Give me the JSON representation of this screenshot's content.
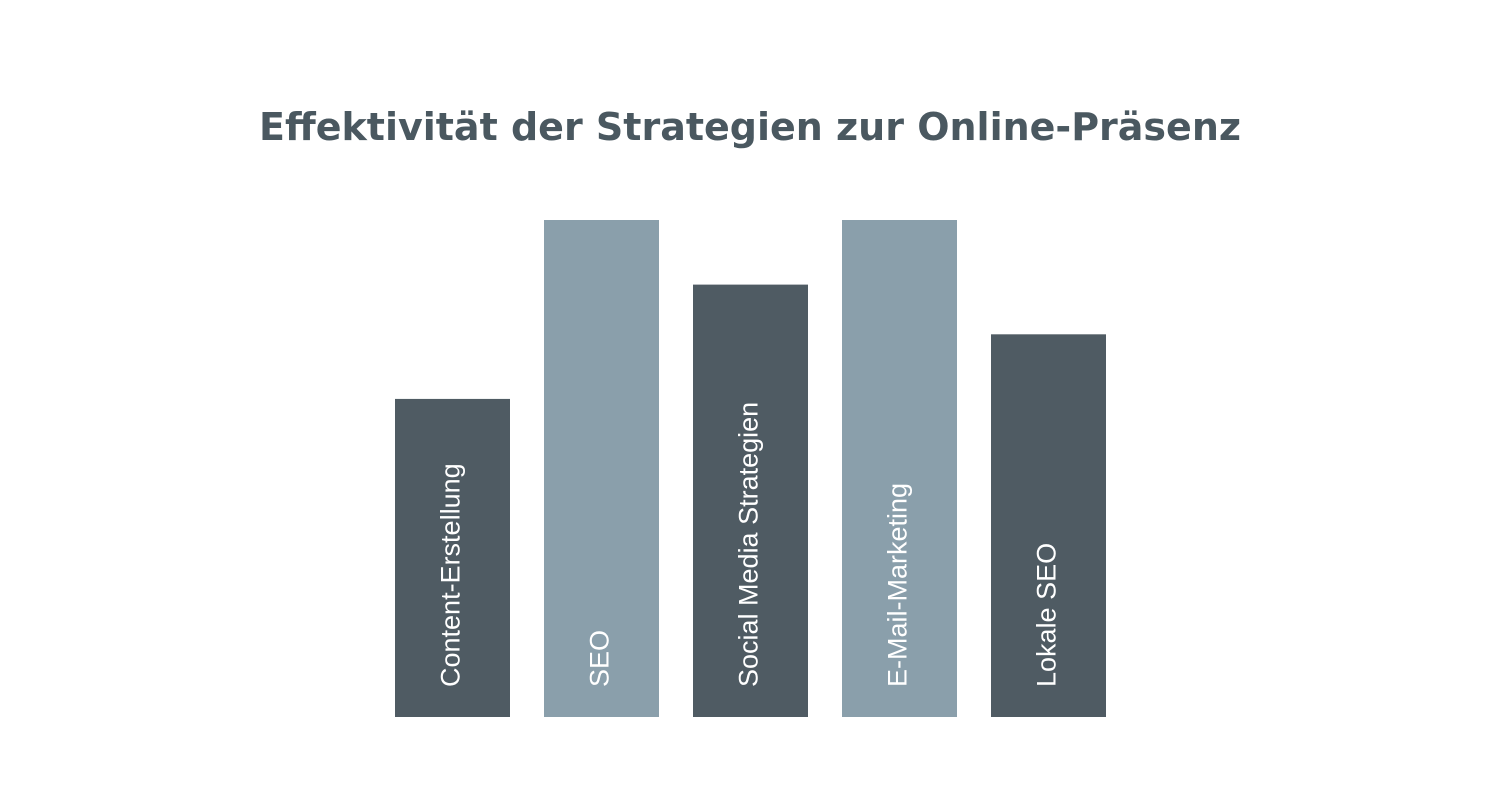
{
  "chart_data": {
    "type": "bar",
    "title": "Effektivität der Strategien zur Online-Präsenz",
    "categories": [
      "Content-Erstellung",
      "SEO",
      "Social Media Strategien",
      "E-Mail-Marketing",
      "Lokale SEO"
    ],
    "values": [
      64,
      100,
      87,
      100,
      77
    ],
    "colors": [
      "#4f5b63",
      "#8a9fab",
      "#4f5b63",
      "#8a9fab",
      "#4f5b63"
    ],
    "ylim": [
      0,
      100
    ]
  }
}
